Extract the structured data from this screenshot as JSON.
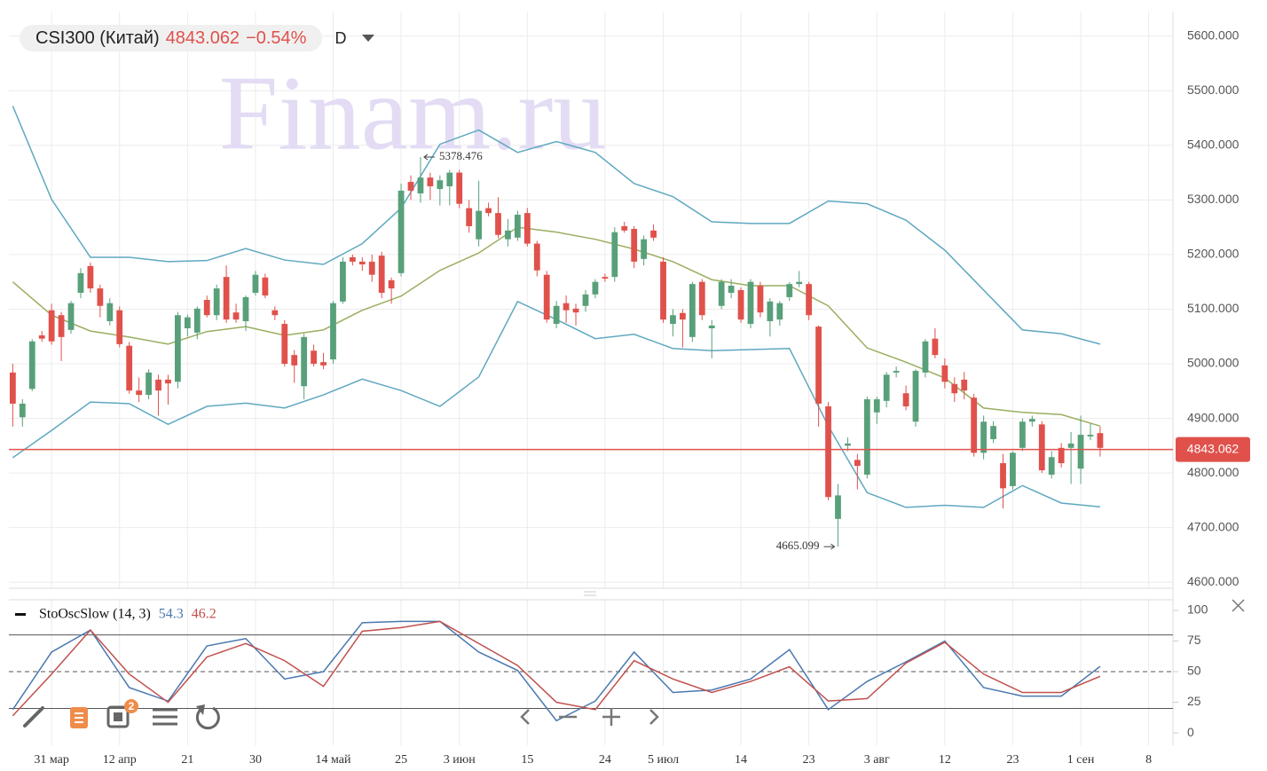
{
  "header": {
    "symbol": "CSI300 (Китай)",
    "change": "−0.54%",
    "interval": "D"
  },
  "watermark": "Finam.ru",
  "toolbar": {
    "badge": "2"
  },
  "chart_data": [
    {
      "type": "candlestick",
      "up_color": "#58a07a",
      "down_color": "#e0514b",
      "grid": true,
      "xlim": [
        -0.4,
        119.5
      ],
      "ylim": [
        4589,
        5645
      ],
      "xticks": [
        {
          "value": 4,
          "label": "31 мар"
        },
        {
          "value": 11,
          "label": "12 апр"
        },
        {
          "value": 18,
          "label": "21"
        },
        {
          "value": 25,
          "label": "30"
        },
        {
          "value": 33,
          "label": "14 май"
        },
        {
          "value": 40,
          "label": "25"
        },
        {
          "value": 46,
          "label": "3 июн"
        },
        {
          "value": 53,
          "label": "15"
        },
        {
          "value": 61,
          "label": "24"
        },
        {
          "value": 67,
          "label": "5 июл"
        },
        {
          "value": 75,
          "label": "14"
        },
        {
          "value": 82,
          "label": "23"
        },
        {
          "value": 89,
          "label": "3 авг"
        },
        {
          "value": 96,
          "label": "12"
        },
        {
          "value": 103,
          "label": "23"
        },
        {
          "value": 110,
          "label": "1 сен"
        },
        {
          "value": 117,
          "label": "8"
        }
      ],
      "yticks": [
        {
          "value": 4600,
          "label": "4600.000"
        },
        {
          "value": 4700,
          "label": "4700.000"
        },
        {
          "value": 4800,
          "label": "4800.000"
        },
        {
          "value": 4900,
          "label": "4900.000"
        },
        {
          "value": 5000,
          "label": "5000.000"
        },
        {
          "value": 5100,
          "label": "5100.000"
        },
        {
          "value": 5200,
          "label": "5200.000"
        },
        {
          "value": 5300,
          "label": "5300.000"
        },
        {
          "value": 5400,
          "label": "5400.000"
        },
        {
          "value": 5500,
          "label": "5500.000"
        },
        {
          "value": 5600,
          "label": "5600.000"
        }
      ],
      "last_price": 4843.062,
      "last_price_color": "#e0514b",
      "candles": [
        [
          4984,
          5000,
          4885,
          4927
        ],
        [
          4902,
          4935,
          4885,
          4927
        ],
        [
          4954,
          5045,
          4950,
          5041
        ],
        [
          5052,
          5060,
          5040,
          5046
        ],
        [
          5098,
          5110,
          5035,
          5041
        ],
        [
          5089,
          5095,
          5005,
          5049
        ],
        [
          5062,
          5115,
          5055,
          5111
        ],
        [
          5130,
          5175,
          5120,
          5166
        ],
        [
          5179,
          5185,
          5130,
          5138
        ],
        [
          5138,
          5145,
          5085,
          5106
        ],
        [
          5078,
          5120,
          5070,
          5111
        ],
        [
          5098,
          5105,
          5030,
          5036
        ],
        [
          5033,
          5040,
          4945,
          4951
        ],
        [
          4951,
          4975,
          4930,
          4943
        ],
        [
          4943,
          4990,
          4935,
          4984
        ],
        [
          4971,
          4980,
          4905,
          4951
        ],
        [
          4971,
          4980,
          4925,
          4964
        ],
        [
          4967,
          5095,
          4955,
          5089
        ],
        [
          5065,
          5090,
          5050,
          5085
        ],
        [
          5057,
          5105,
          5045,
          5101
        ],
        [
          5117,
          5125,
          5085,
          5089
        ],
        [
          5089,
          5145,
          5080,
          5138
        ],
        [
          5159,
          5180,
          5075,
          5081
        ],
        [
          5094,
          5110,
          5075,
          5081
        ],
        [
          5078,
          5125,
          5060,
          5122
        ],
        [
          5130,
          5170,
          5125,
          5163
        ],
        [
          5158,
          5165,
          5120,
          5125
        ],
        [
          5098,
          5105,
          5080,
          5089
        ],
        [
          5073,
          5080,
          4995,
          5000
        ],
        [
          5016,
          5025,
          4965,
          4997
        ],
        [
          4959,
          5055,
          4935,
          5049
        ],
        [
          5024,
          5035,
          4995,
          5000
        ],
        [
          5003,
          5020,
          4990,
          4997
        ],
        [
          5008,
          5115,
          5000,
          5111
        ],
        [
          5114,
          5195,
          5110,
          5187
        ],
        [
          5195,
          5200,
          5180,
          5187
        ],
        [
          5187,
          5195,
          5170,
          5182
        ],
        [
          5187,
          5200,
          5150,
          5163
        ],
        [
          5198,
          5205,
          5120,
          5130
        ],
        [
          5153,
          5158,
          5110,
          5138
        ],
        [
          5166,
          5330,
          5160,
          5317
        ],
        [
          5333,
          5345,
          5300,
          5317
        ],
        [
          5312,
          5378.476,
          5295,
          5341
        ],
        [
          5341,
          5350,
          5300,
          5325
        ],
        [
          5320,
          5345,
          5290,
          5336
        ],
        [
          5325,
          5355,
          5290,
          5350
        ],
        [
          5350,
          5355,
          5285,
          5293
        ],
        [
          5285,
          5300,
          5240,
          5252
        ],
        [
          5228,
          5335,
          5215,
          5280
        ],
        [
          5285,
          5295,
          5270,
          5276
        ],
        [
          5276,
          5305,
          5230,
          5236
        ],
        [
          5228,
          5265,
          5215,
          5244
        ],
        [
          5231,
          5280,
          5225,
          5273
        ],
        [
          5276,
          5285,
          5215,
          5220
        ],
        [
          5220,
          5225,
          5160,
          5171
        ],
        [
          5163,
          5170,
          5075,
          5081
        ],
        [
          5073,
          5115,
          5065,
          5106
        ],
        [
          5111,
          5125,
          5075,
          5098
        ],
        [
          5101,
          5110,
          5070,
          5094
        ],
        [
          5106,
          5135,
          5095,
          5127
        ],
        [
          5127,
          5155,
          5120,
          5150
        ],
        [
          5159,
          5165,
          5150,
          5156
        ],
        [
          5159,
          5250,
          5150,
          5241
        ],
        [
          5252,
          5260,
          5240,
          5244
        ],
        [
          5247,
          5252,
          5175,
          5187
        ],
        [
          5192,
          5235,
          5180,
          5228
        ],
        [
          5244,
          5255,
          5225,
          5231
        ],
        [
          5187,
          5195,
          5075,
          5081
        ],
        [
          5073,
          5100,
          5050,
          5089
        ],
        [
          5093,
          5100,
          5030,
          5081
        ],
        [
          5049,
          5150,
          5040,
          5146
        ],
        [
          5150,
          5155,
          5080,
          5089
        ],
        [
          5065,
          5080,
          5010,
          5070
        ],
        [
          5106,
          5155,
          5100,
          5150
        ],
        [
          5130,
          5155,
          5120,
          5143
        ],
        [
          5135,
          5140,
          5075,
          5081
        ],
        [
          5073,
          5155,
          5065,
          5150
        ],
        [
          5143,
          5150,
          5085,
          5094
        ],
        [
          5078,
          5120,
          5050,
          5114
        ],
        [
          5081,
          5115,
          5070,
          5111
        ],
        [
          5122,
          5150,
          5115,
          5146
        ],
        [
          5146,
          5170,
          5140,
          5150
        ],
        [
          5146,
          5150,
          5080,
          5089
        ],
        [
          5068,
          5070,
          4885,
          4927
        ],
        [
          4922,
          4930,
          4750,
          4756
        ],
        [
          4716,
          4780,
          4665.099,
          4759
        ],
        [
          4850,
          4865,
          4840,
          4854
        ],
        [
          4824,
          4835,
          4770,
          4813
        ],
        [
          4797,
          4940,
          4790,
          4935
        ],
        [
          4911,
          4940,
          4890,
          4935
        ],
        [
          4932,
          4985,
          4920,
          4980
        ],
        [
          4984,
          4995,
          4975,
          4987
        ],
        [
          4946,
          4960,
          4915,
          4922
        ],
        [
          4894,
          4990,
          4885,
          4987
        ],
        [
          4984,
          5045,
          4975,
          5041
        ],
        [
          5046,
          5065,
          5010,
          5016
        ],
        [
          4997,
          5010,
          4955,
          4967
        ],
        [
          4963,
          4975,
          4930,
          4946
        ],
        [
          4971,
          4985,
          4935,
          4951
        ],
        [
          4938,
          4945,
          4830,
          4837
        ],
        [
          4837,
          4905,
          4825,
          4894
        ],
        [
          4862,
          4895,
          4855,
          4886
        ],
        [
          4818,
          4835,
          4735,
          4772
        ],
        [
          4776,
          4840,
          4770,
          4837
        ],
        [
          4846,
          4900,
          4840,
          4894
        ],
        [
          4894,
          4905,
          4885,
          4899
        ],
        [
          4889,
          4895,
          4800,
          4805
        ],
        [
          4797,
          4840,
          4790,
          4829
        ],
        [
          4846,
          4855,
          4810,
          4818
        ],
        [
          4846,
          4875,
          4780,
          4854
        ],
        [
          4808,
          4905,
          4780,
          4870
        ],
        [
          4867,
          4890,
          4860,
          4870
        ],
        [
          4873,
          4885,
          4830,
          4846
        ]
      ],
      "x": [
        0,
        4,
        8,
        12,
        16,
        20,
        24,
        28,
        32,
        36,
        40,
        44,
        48,
        52,
        56,
        60,
        64,
        68,
        72,
        76,
        80,
        84,
        88,
        92,
        96,
        100,
        104,
        108,
        112
      ],
      "series": [
        {
          "color": "#5fa8c0",
          "values": [
            5472,
            5301,
            5195,
            5195,
            5187,
            5189,
            5211,
            5190,
            5182,
            5220,
            5285,
            5402,
            5428,
            5387,
            5407,
            5387,
            5330,
            5306,
            5260,
            5257,
            5257,
            5298,
            5293,
            5263,
            5208,
            5135,
            5062,
            5055,
            5036
          ]
        },
        {
          "color": "#9aae60",
          "values": [
            5150,
            5089,
            5060,
            5049,
            5036,
            5059,
            5068,
            5052,
            5062,
            5098,
            5124,
            5171,
            5203,
            5250,
            5241,
            5228,
            5210,
            5187,
            5154,
            5143,
            5143,
            5106,
            5029,
            5003,
            4974,
            4919,
            4911,
            4907,
            4886
          ]
        },
        {
          "color": "#5fa8c0",
          "values": [
            4828,
            4878,
            4930,
            4927,
            4889,
            4922,
            4928,
            4919,
            4943,
            4972,
            4951,
            4922,
            4976,
            5114,
            5081,
            5046,
            5054,
            5028,
            5024,
            5026,
            5028,
            4886,
            4764,
            4737,
            4741,
            4737,
            4777,
            4745,
            4738
          ]
        }
      ]
    },
    {
      "type": "line",
      "title": "StoOscSlow (14, 3)",
      "xlim": [
        -0.4,
        119.5
      ],
      "ylim": [
        -10.1,
        108.7
      ],
      "yticks": [
        0,
        25,
        50,
        75,
        100
      ],
      "levels": [
        80,
        50,
        20
      ],
      "x": [
        0,
        4,
        8,
        12,
        16,
        20,
        24,
        28,
        32,
        36,
        40,
        44,
        48,
        52,
        56,
        60,
        64,
        68,
        72,
        76,
        80,
        84,
        88,
        92,
        96,
        100,
        104,
        108,
        112
      ],
      "series": [
        {
          "color": "#4a78b0",
          "values": [
            19,
            66,
            84,
            37,
            26,
            71,
            77,
            44,
            50,
            90,
            91,
            91,
            66,
            51,
            10,
            26,
            66,
            33,
            35,
            44,
            68,
            19,
            42,
            58,
            75,
            37,
            30,
            30,
            54.3
          ]
        },
        {
          "color": "#c0504d",
          "values": [
            14,
            48,
            84,
            48,
            25,
            62,
            73,
            59,
            38,
            83,
            86,
            91,
            73,
            55,
            25,
            19,
            59,
            44,
            33,
            42,
            54,
            26,
            28,
            57,
            74,
            48,
            33,
            33,
            46.2
          ]
        }
      ]
    }
  ]
}
